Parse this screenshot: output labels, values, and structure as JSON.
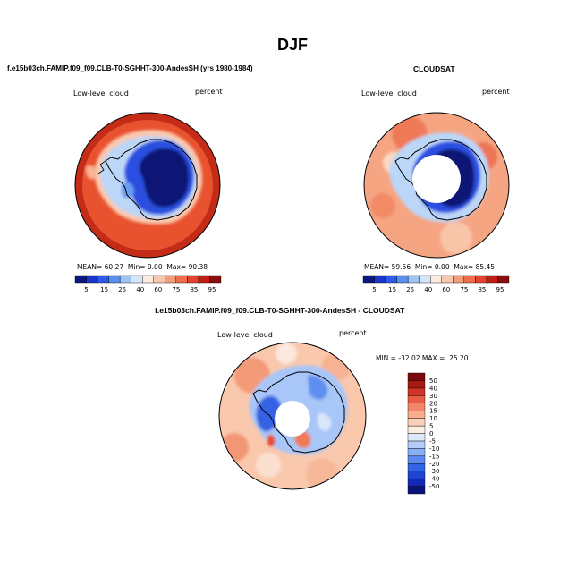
{
  "page_title": "DJF",
  "charts": [
    {
      "title": "f.e15b03ch.FAMIP.f09_f09.CLB-T0-SGHHT-300-AndesSH (yrs 1980-1984)",
      "left_label": "Low-level cloud",
      "right_label": "percent",
      "stats": {
        "mean_label": "MEAN=",
        "mean": "60.27",
        "min_label": "Min=",
        "min": "0.00",
        "max_label": "Max=",
        "max": "90.38"
      }
    },
    {
      "title": "CLOUDSAT",
      "left_label": "Low-level cloud",
      "right_label": "percent",
      "stats": {
        "mean_label": "MEAN=",
        "mean": "59.56",
        "min_label": "Min=",
        "min": "0.00",
        "max_label": "Max=",
        "max": "85.45"
      }
    },
    {
      "title": "f.e15b03ch.FAMIP.f09_f09.CLB-T0-SGHHT-300-AndesSH - CLOUDSAT",
      "left_label": "Low-level cloud",
      "right_label": "percent",
      "minmax": "MIN = -32.02 MAX =  25.20"
    }
  ],
  "chart_data": [
    {
      "type": "heatmap",
      "projection": "south-polar-stereographic",
      "title": "f.e15b03ch.FAMIP.f09_f09.CLB-T0-SGHHT-300-AndesSH (yrs 1980-1984)",
      "variable": "Low-level cloud",
      "units": "percent",
      "mean": 60.27,
      "min": 0.0,
      "max": 90.38,
      "colorbar": {
        "orientation": "horizontal",
        "levels": [
          5,
          15,
          25,
          40,
          60,
          75,
          85,
          95
        ],
        "colors": [
          "#0c1680",
          "#1a36c8",
          "#2e5ae8",
          "#5b8ef0",
          "#9cc4f6",
          "#d4e6fb",
          "#fcecdf",
          "#f9c7ab",
          "#f59c7c",
          "#ef6f4c",
          "#e2432c",
          "#c11f16",
          "#8a0c0c"
        ]
      }
    },
    {
      "type": "heatmap",
      "projection": "south-polar-stereographic",
      "title": "CLOUDSAT",
      "variable": "Low-level cloud",
      "units": "percent",
      "mean": 59.56,
      "min": 0.0,
      "max": 85.45,
      "colorbar": {
        "orientation": "horizontal",
        "levels": [
          5,
          15,
          25,
          40,
          60,
          75,
          85,
          95
        ],
        "colors": [
          "#0c1680",
          "#1a36c8",
          "#2e5ae8",
          "#5b8ef0",
          "#9cc4f6",
          "#d4e6fb",
          "#fcecdf",
          "#f9c7ab",
          "#f59c7c",
          "#ef6f4c",
          "#e2432c",
          "#c11f16",
          "#8a0c0c"
        ]
      }
    },
    {
      "type": "heatmap",
      "projection": "south-polar-stereographic",
      "title": "f.e15b03ch.FAMIP.f09_f09.CLB-T0-SGHHT-300-AndesSH - CLOUDSAT",
      "variable": "Low-level cloud",
      "units": "percent",
      "min": -32.02,
      "max": 25.2,
      "colorbar": {
        "orientation": "vertical",
        "levels": [
          -50,
          -40,
          -30,
          -20,
          -15,
          -10,
          -5,
          0,
          5,
          10,
          15,
          20,
          30,
          40,
          50
        ],
        "colors": [
          "#0a1478",
          "#1428b4",
          "#1e44d2",
          "#3264e6",
          "#5a8aef",
          "#88aef4",
          "#b4cdf8",
          "#dde8fb",
          "#fcefe2",
          "#fad0b8",
          "#f6ae8f",
          "#f1866a",
          "#e85c44",
          "#d03428",
          "#a81a14",
          "#7c0a0a"
        ]
      }
    }
  ]
}
